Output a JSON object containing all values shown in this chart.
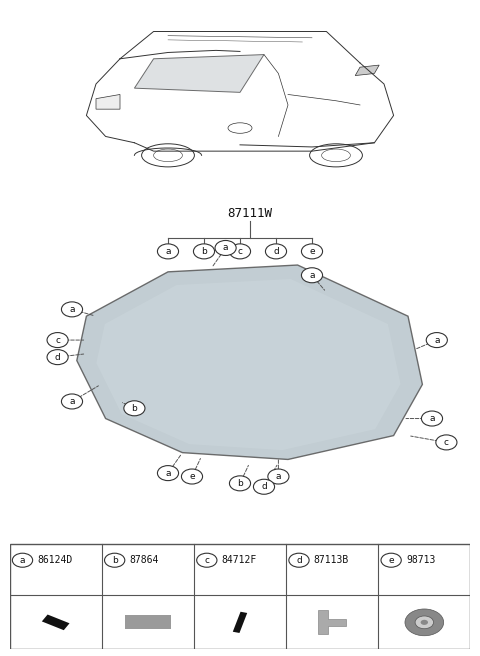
{
  "bg_color": "#ffffff",
  "title": "87111W",
  "part_number_label": "87111W",
  "legend_items": [
    {
      "label": "a",
      "part": "86124D"
    },
    {
      "label": "b",
      "part": "87864"
    },
    {
      "label": "c",
      "part": "84712F"
    },
    {
      "label": "d",
      "part": "87113B"
    },
    {
      "label": "e",
      "part": "98713"
    }
  ],
  "callout_labels": [
    "a",
    "b",
    "c",
    "d",
    "e"
  ],
  "glass_color": "#c0c8cc",
  "glass_color2": "#d8dfe2",
  "outline_color": "#333333",
  "callout_bg": "#ffffff",
  "callout_border": "#333333",
  "line_color": "#555555",
  "font_size_title": 9,
  "font_size_label": 7,
  "font_size_part": 7
}
